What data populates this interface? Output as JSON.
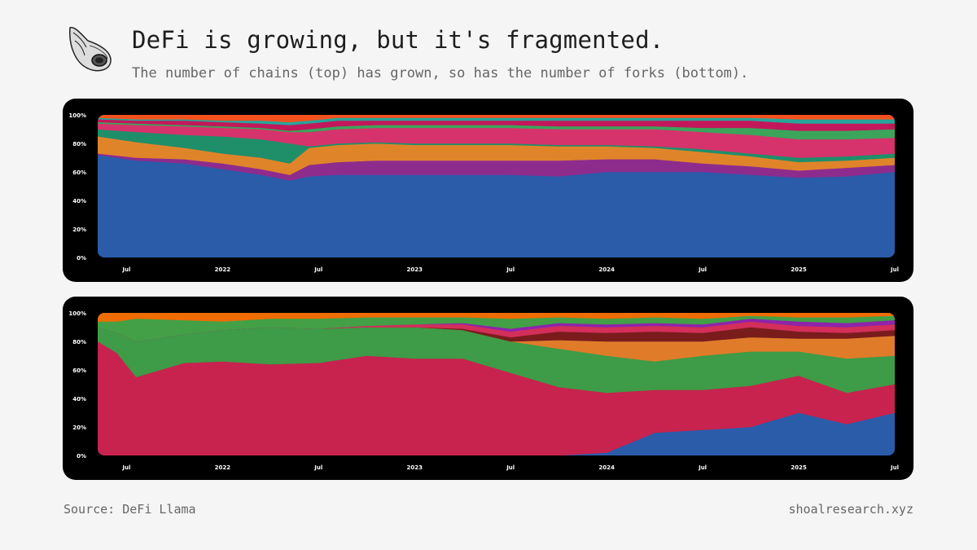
{
  "header": {
    "title": "DeFi is growing, but it's fragmented.",
    "subtitle": "The number of chains (top) has grown, so has the number of forks (bottom)."
  },
  "footer": {
    "source": "Source: DeFi Llama",
    "site": "shoalresearch.xyz"
  },
  "chart_data": [
    {
      "type": "area",
      "stacked": "percent",
      "title": "",
      "xlabel": "",
      "ylabel": "",
      "ylim": [
        0,
        100
      ],
      "y_ticks": [
        "100%",
        "80%",
        "60%",
        "40%",
        "20%",
        "0%"
      ],
      "x_ticks": [
        {
          "label": "Jul",
          "t": 2021.5
        },
        {
          "label": "2022",
          "t": 2022.0
        },
        {
          "label": "Jul",
          "t": 2022.5
        },
        {
          "label": "2023",
          "t": 2023.0
        },
        {
          "label": "Jul",
          "t": 2023.5
        },
        {
          "label": "2024",
          "t": 2024.0
        },
        {
          "label": "Jul",
          "t": 2024.5
        },
        {
          "label": "2025",
          "t": 2025.0
        },
        {
          "label": "Jul",
          "t": 2025.5
        }
      ],
      "x": [
        2021.35,
        2021.55,
        2021.8,
        2022.0,
        2022.2,
        2022.35,
        2022.45,
        2022.6,
        2022.8,
        2023.0,
        2023.25,
        2023.5,
        2023.75,
        2024.0,
        2024.25,
        2024.5,
        2024.75,
        2025.0,
        2025.25,
        2025.5
      ],
      "series": [
        {
          "color": "#2a5caa",
          "values": [
            72,
            68,
            66,
            62,
            58,
            54,
            57,
            58,
            58,
            58,
            58,
            58,
            57,
            60,
            60,
            60,
            58,
            56,
            57,
            60
          ]
        },
        {
          "color": "#8e2c8e",
          "values": [
            1,
            2,
            3,
            4,
            4,
            4,
            8,
            9,
            10,
            10,
            10,
            10,
            11,
            9,
            9,
            6,
            6,
            5,
            6,
            5
          ]
        },
        {
          "color": "#e0842a",
          "values": [
            12,
            11,
            8,
            7,
            8,
            8,
            12,
            12,
            12,
            11,
            11,
            11,
            10,
            9,
            8,
            8,
            7,
            6,
            5,
            5
          ]
        },
        {
          "color": "#1f8f6a",
          "values": [
            5,
            7,
            9,
            12,
            13,
            14,
            1,
            1,
            1,
            1,
            1,
            1,
            1,
            1,
            1,
            2,
            2,
            3,
            3,
            3
          ]
        },
        {
          "color": "#d6336c",
          "values": [
            4,
            5,
            6,
            6,
            7,
            8,
            10,
            10,
            10,
            11,
            11,
            11,
            11,
            11,
            12,
            12,
            13,
            13,
            12,
            11
          ]
        },
        {
          "color": "#3ba55c",
          "values": [
            1,
            1,
            1,
            1,
            1,
            1,
            2,
            2,
            2,
            2,
            2,
            2,
            2,
            2,
            2,
            3,
            5,
            6,
            6,
            6
          ]
        },
        {
          "color": "#c2185b",
          "values": [
            2,
            2,
            3,
            3,
            3,
            4,
            4,
            4,
            3,
            3,
            3,
            3,
            4,
            4,
            4,
            5,
            5,
            5,
            5,
            4
          ]
        },
        {
          "color": "#26a69a",
          "values": [
            1,
            1,
            1,
            1,
            2,
            2,
            2,
            2,
            2,
            2,
            2,
            2,
            2,
            2,
            2,
            2,
            2,
            3,
            3,
            3
          ]
        },
        {
          "color": "#f4511e",
          "values": [
            2,
            3,
            3,
            4,
            4,
            5,
            4,
            2,
            2,
            2,
            2,
            2,
            2,
            2,
            2,
            2,
            2,
            3,
            3,
            3
          ]
        }
      ]
    },
    {
      "type": "area",
      "stacked": "percent",
      "title": "",
      "xlabel": "",
      "ylabel": "",
      "ylim": [
        0,
        100
      ],
      "y_ticks": [
        "100%",
        "80%",
        "60%",
        "40%",
        "20%",
        "0%"
      ],
      "x_ticks": [
        {
          "label": "Jul",
          "t": 2021.5
        },
        {
          "label": "2022",
          "t": 2022.0
        },
        {
          "label": "Jul",
          "t": 2022.5
        },
        {
          "label": "2023",
          "t": 2023.0
        },
        {
          "label": "Jul",
          "t": 2023.5
        },
        {
          "label": "2024",
          "t": 2024.0
        },
        {
          "label": "Jul",
          "t": 2024.5
        },
        {
          "label": "2025",
          "t": 2025.0
        },
        {
          "label": "Jul",
          "t": 2025.5
        }
      ],
      "x": [
        2021.35,
        2021.45,
        2021.55,
        2021.8,
        2022.0,
        2022.25,
        2022.5,
        2022.75,
        2023.0,
        2023.25,
        2023.5,
        2023.75,
        2024.0,
        2024.25,
        2024.5,
        2024.75,
        2025.0,
        2025.25,
        2025.5
      ],
      "series": [
        {
          "color": "#2a5caa",
          "values": [
            0,
            0,
            0,
            0,
            0,
            0,
            0,
            0,
            0,
            0,
            0,
            0,
            2,
            16,
            18,
            20,
            30,
            22,
            30
          ]
        },
        {
          "color": "#c8234e",
          "values": [
            80,
            72,
            55,
            65,
            66,
            64,
            65,
            70,
            68,
            68,
            58,
            48,
            42,
            30,
            28,
            29,
            26,
            22,
            20
          ]
        },
        {
          "color": "#3e9b47",
          "values": [
            10,
            14,
            25,
            20,
            22,
            26,
            24,
            20,
            22,
            20,
            22,
            27,
            26,
            20,
            24,
            24,
            17,
            24,
            20
          ]
        },
        {
          "color": "#e07b2a",
          "values": [
            0,
            0,
            0,
            0,
            0,
            0,
            0,
            0,
            0,
            0,
            0,
            6,
            10,
            14,
            10,
            10,
            9,
            14,
            14
          ]
        },
        {
          "color": "#7a1c1c",
          "values": [
            0,
            0,
            0,
            0,
            0,
            0,
            0,
            0,
            0,
            1,
            3,
            6,
            6,
            7,
            6,
            7,
            5,
            4,
            4
          ]
        },
        {
          "color": "#d32f5a",
          "values": [
            0,
            0,
            0,
            0,
            0,
            0,
            0,
            1,
            2,
            3,
            4,
            4,
            4,
            4,
            4,
            4,
            4,
            4,
            4
          ]
        },
        {
          "color": "#8e24aa",
          "values": [
            0,
            0,
            0,
            0,
            0,
            0,
            0,
            0,
            0,
            1,
            2,
            2,
            2,
            2,
            2,
            2,
            3,
            3,
            3
          ]
        },
        {
          "color": "#43a047",
          "values": [
            4,
            8,
            16,
            10,
            6,
            6,
            7,
            6,
            5,
            4,
            7,
            4,
            4,
            4,
            4,
            2,
            3,
            4,
            3
          ]
        },
        {
          "color": "#ef6c00",
          "values": [
            6,
            6,
            4,
            5,
            6,
            4,
            4,
            3,
            3,
            3,
            4,
            3,
            4,
            3,
            4,
            2,
            3,
            3,
            2
          ]
        }
      ]
    }
  ]
}
